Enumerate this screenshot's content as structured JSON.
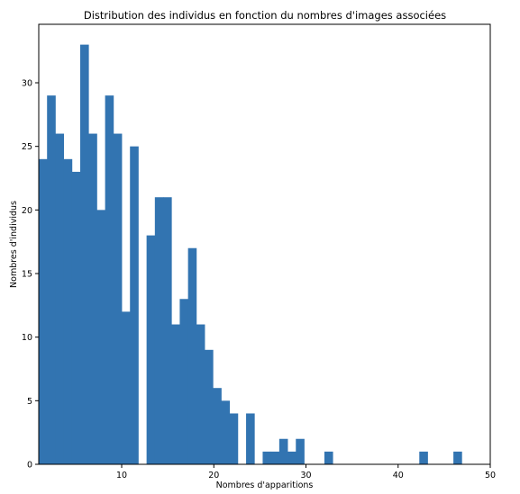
{
  "chart_data": {
    "type": "bar",
    "title": "Distribution des individus en fonction du nombres d'images associées",
    "xlabel": "Nombres d'apparitions",
    "ylabel": "Nombres d'individus",
    "xlim": [
      1,
      50
    ],
    "ylim": [
      0,
      34.6
    ],
    "xticks": [
      10,
      20,
      30,
      40,
      50
    ],
    "yticks": [
      0,
      5,
      10,
      15,
      20,
      25,
      30
    ],
    "bar_color": "#3274b1",
    "grid": false,
    "series": [
      {
        "bins": [
          {
            "x0": 1.0,
            "x1": 1.9,
            "value": 24
          },
          {
            "x0": 1.9,
            "x1": 2.8,
            "value": 29
          },
          {
            "x0": 2.8,
            "x1": 3.7,
            "value": 26
          },
          {
            "x0": 3.7,
            "x1": 4.6,
            "value": 24
          },
          {
            "x0": 4.6,
            "x1": 5.5,
            "value": 23
          },
          {
            "x0": 5.5,
            "x1": 6.4,
            "value": 33
          },
          {
            "x0": 6.4,
            "x1": 7.3,
            "value": 26
          },
          {
            "x0": 7.3,
            "x1": 8.2,
            "value": 20
          },
          {
            "x0": 8.2,
            "x1": 9.1,
            "value": 29
          },
          {
            "x0": 9.1,
            "x1": 10.0,
            "value": 26
          },
          {
            "x0": 10.0,
            "x1": 10.9,
            "value": 12
          },
          {
            "x0": 10.9,
            "x1": 11.8,
            "value": 25
          },
          {
            "x0": 11.8,
            "x1": 12.7,
            "value": 0
          },
          {
            "x0": 12.7,
            "x1": 13.6,
            "value": 18
          },
          {
            "x0": 13.6,
            "x1": 14.5,
            "value": 21
          },
          {
            "x0": 14.5,
            "x1": 15.4,
            "value": 21
          },
          {
            "x0": 15.4,
            "x1": 16.3,
            "value": 11
          },
          {
            "x0": 16.3,
            "x1": 17.2,
            "value": 13
          },
          {
            "x0": 17.2,
            "x1": 18.1,
            "value": 17
          },
          {
            "x0": 18.1,
            "x1": 19.0,
            "value": 11
          },
          {
            "x0": 19.0,
            "x1": 19.9,
            "value": 9
          },
          {
            "x0": 19.9,
            "x1": 20.8,
            "value": 6
          },
          {
            "x0": 20.8,
            "x1": 21.7,
            "value": 5
          },
          {
            "x0": 21.7,
            "x1": 22.6,
            "value": 4
          },
          {
            "x0": 22.6,
            "x1": 23.5,
            "value": 0
          },
          {
            "x0": 23.5,
            "x1": 24.4,
            "value": 4
          },
          {
            "x0": 24.4,
            "x1": 25.3,
            "value": 0
          },
          {
            "x0": 25.3,
            "x1": 26.2,
            "value": 1
          },
          {
            "x0": 26.2,
            "x1": 27.1,
            "value": 1
          },
          {
            "x0": 27.1,
            "x1": 28.0,
            "value": 2
          },
          {
            "x0": 28.0,
            "x1": 28.9,
            "value": 1
          },
          {
            "x0": 28.9,
            "x1": 29.8,
            "value": 2
          },
          {
            "x0": 32.0,
            "x1": 32.9,
            "value": 1
          },
          {
            "x0": 42.3,
            "x1": 43.2,
            "value": 1
          },
          {
            "x0": 46.0,
            "x1": 46.9,
            "value": 1
          }
        ]
      }
    ]
  }
}
